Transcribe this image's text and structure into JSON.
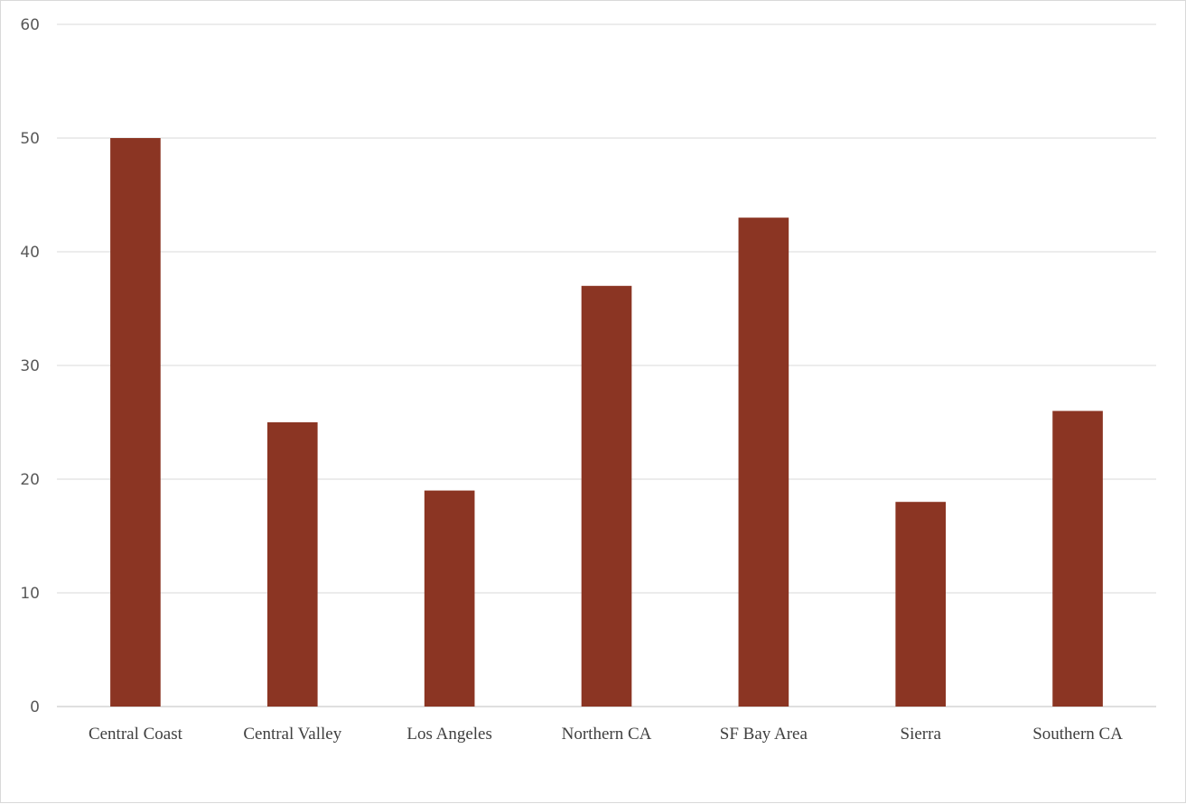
{
  "chart_data": {
    "type": "bar",
    "title": "",
    "xlabel": "",
    "ylabel": "",
    "categories": [
      "Central Coast",
      "Central Valley",
      "Los Angeles",
      "Northern CA",
      "SF Bay Area",
      "Sierra",
      "Southern CA"
    ],
    "values": [
      50,
      25,
      19,
      37,
      43,
      18,
      26
    ],
    "ylim": [
      0,
      60
    ],
    "yticks": [
      0,
      10,
      20,
      30,
      40,
      50,
      60
    ],
    "grid": true,
    "legend": "none",
    "colors": {
      "bar": "#8B3523",
      "gridline": "#d9d9d9",
      "axis": "#bfbfbf"
    }
  }
}
